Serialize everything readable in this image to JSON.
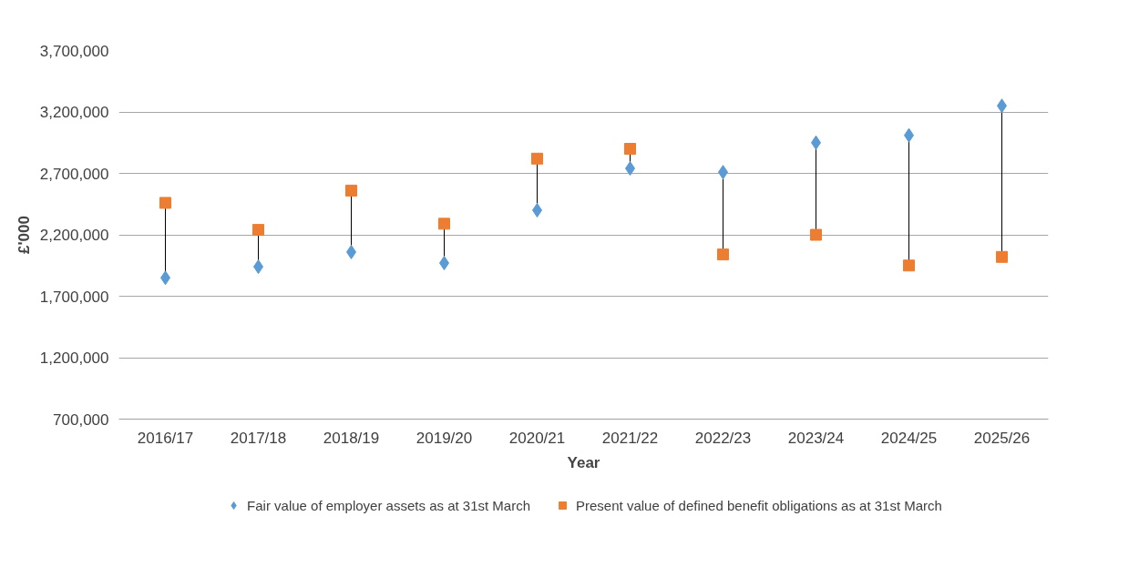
{
  "chart_data": {
    "type": "scatter",
    "xlabel": "Year",
    "ylabel": "£'000",
    "categories": [
      "2016/17",
      "2017/18",
      "2018/19",
      "2019/20",
      "2020/21",
      "2021/22",
      "2022/23",
      "2023/24",
      "2024/25",
      "2025/26"
    ],
    "series": [
      {
        "name": "Fair value of employer assets as at 31st March",
        "color": "#5b9bd5",
        "marker": "diamond",
        "values": [
          1850000,
          1940000,
          2060000,
          1970000,
          2400000,
          2740000,
          2710000,
          2950000,
          3010000,
          3250000
        ]
      },
      {
        "name": "Present value of defined benefit obligations as at 31st March",
        "color": "#ed7d31",
        "marker": "square",
        "values": [
          2460000,
          2240000,
          2560000,
          2290000,
          2820000,
          2900000,
          2040000,
          2200000,
          1950000,
          2020000
        ]
      }
    ],
    "ylim": [
      700000,
      3700000
    ],
    "yticks": [
      {
        "value": 700000,
        "label": "700,000"
      },
      {
        "value": 1200000,
        "label": "1,200,000"
      },
      {
        "value": 1700000,
        "label": "1,700,000"
      },
      {
        "value": 2200000,
        "label": "2,200,000"
      },
      {
        "value": 2700000,
        "label": "2,700,000"
      },
      {
        "value": 3200000,
        "label": "3,200,000"
      },
      {
        "value": 3700000,
        "label": "3,700,000"
      }
    ],
    "grid": "y",
    "legend": "bottom"
  }
}
